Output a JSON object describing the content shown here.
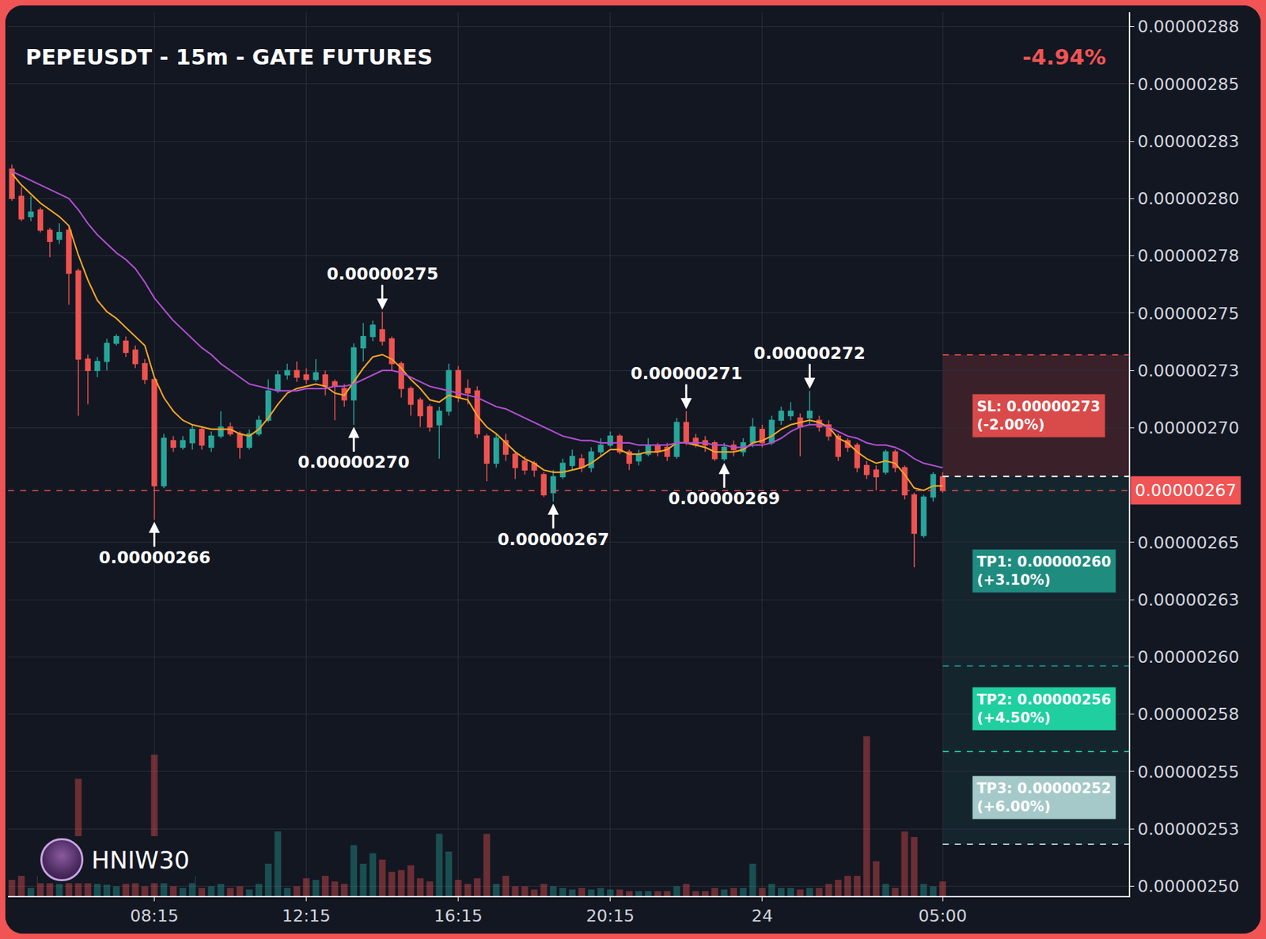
{
  "chart_data": {
    "type": "candlestick",
    "title": "PEPEUSDT - 15m - GATE FUTURES",
    "change": {
      "value": -4.94,
      "label": "-4.94%"
    },
    "watermark": "HNIW30",
    "categories": [
      null,
      null,
      null,
      null,
      null,
      null,
      null,
      null,
      null,
      null,
      null,
      null,
      null,
      null,
      null,
      "08:15",
      null,
      null,
      null,
      null,
      null,
      null,
      null,
      null,
      null,
      null,
      null,
      null,
      null,
      null,
      null,
      "12:15",
      null,
      null,
      null,
      null,
      null,
      null,
      null,
      null,
      null,
      null,
      null,
      null,
      null,
      null,
      null,
      "16:15",
      null,
      null,
      null,
      null,
      null,
      null,
      null,
      null,
      null,
      null,
      null,
      null,
      null,
      null,
      null,
      "20:15",
      null,
      null,
      null,
      null,
      null,
      null,
      null,
      null,
      null,
      null,
      null,
      null,
      null,
      null,
      null,
      "24",
      null,
      null,
      null,
      null,
      null,
      null,
      null,
      null,
      null,
      null,
      null,
      null,
      null,
      null,
      null,
      null,
      null,
      null,
      "05:00"
    ],
    "open": [
      2.817e-06,
      2.805e-06,
      2.796e-06,
      2.799e-06,
      2.79e-06,
      2.786e-06,
      2.79e-06,
      2.772e-06,
      2.733e-06,
      2.728e-06,
      2.732e-06,
      2.74e-06,
      2.741e-06,
      2.737e-06,
      2.731e-06,
      2.724e-06,
      2.677e-06,
      2.697e-06,
      2.694e-06,
      2.696e-06,
      2.702e-06,
      2.694e-06,
      2.699e-06,
      2.703e-06,
      2.7e-06,
      2.694e-06,
      2.7e-06,
      2.706e-06,
      2.719e-06,
      2.726e-06,
      2.728e-06,
      2.726e-06,
      2.724e-06,
      2.726e-06,
      2.723e-06,
      2.72e-06,
      2.715e-06,
      2.738e-06,
      2.743e-06,
      2.746e-06,
      2.742e-06,
      2.731e-06,
      2.72e-06,
      2.715e-06,
      2.712e-06,
      2.704e-06,
      2.71e-06,
      2.728e-06,
      2.72e-06,
      2.719e-06,
      2.699e-06,
      2.687e-06,
      2.697e-06,
      2.691e-06,
      2.688e-06,
      2.687e-06,
      2.682e-06,
      2.674e-06,
      2.681e-06,
      2.686e-06,
      2.689e-06,
      2.685e-06,
      2.692e-06,
      2.695e-06,
      2.699e-06,
      2.692e-06,
      2.688e-06,
      2.691e-06,
      2.695e-06,
      2.694e-06,
      2.69e-06,
      2.705e-06,
      2.698e-06,
      2.697e-06,
      2.696e-06,
      2.689e-06,
      2.695e-06,
      2.692e-06,
      2.696e-06,
      2.702e-06,
      2.696e-06,
      2.706e-06,
      2.708e-06,
      2.707e-06,
      2.707e-06,
      2.706e-06,
      2.704e-06,
      2.699e-06,
      2.697e-06,
      2.695e-06,
      2.686e-06,
      2.684e-06,
      2.683e-06,
      2.692e-06,
      2.685e-06,
      2.673e-06,
      2.655e-06,
      2.672e-06,
      2.681e-06
    ],
    "high": [
      2.819e-06,
      2.809e-06,
      2.805e-06,
      2.8e-06,
      2.791e-06,
      2.793e-06,
      2.792e-06,
      2.773e-06,
      2.735e-06,
      2.734e-06,
      2.742e-06,
      2.744e-06,
      2.743e-06,
      2.739e-06,
      2.733e-06,
      2.725e-06,
      2.7e-06,
      2.699e-06,
      2.699e-06,
      2.704e-06,
      2.703e-06,
      2.701e-06,
      2.71e-06,
      2.705e-06,
      2.701e-06,
      2.702e-06,
      2.708e-06,
      2.724e-06,
      2.728e-06,
      2.731e-06,
      2.732e-06,
      2.729e-06,
      2.733e-06,
      2.728e-06,
      2.724e-06,
      2.722e-06,
      2.74e-06,
      2.749e-06,
      2.75e-06,
      2.754e-06,
      2.743e-06,
      2.732e-06,
      2.721e-06,
      2.716e-06,
      2.713e-06,
      2.712e-06,
      2.731e-06,
      2.73e-06,
      2.724e-06,
      2.721e-06,
      2.7e-06,
      2.7e-06,
      2.7e-06,
      2.692e-06,
      2.69e-06,
      2.688e-06,
      2.683e-06,
      2.684e-06,
      2.689e-06,
      2.693e-06,
      2.691e-06,
      2.694e-06,
      2.698e-06,
      2.701e-06,
      2.7e-06,
      2.693e-06,
      2.693e-06,
      2.698e-06,
      2.696e-06,
      2.696e-06,
      2.707e-06,
      2.71e-06,
      2.7e-06,
      2.699e-06,
      2.697e-06,
      2.696e-06,
      2.697e-06,
      2.698e-06,
      2.707e-06,
      2.704e-06,
      2.708e-06,
      2.712e-06,
      2.714e-06,
      2.709e-06,
      2.719e-06,
      2.708e-06,
      2.706e-06,
      2.7e-06,
      2.698e-06,
      2.696e-06,
      2.688e-06,
      2.686e-06,
      2.693e-06,
      2.693e-06,
      2.686e-06,
      2.674e-06,
      2.673e-06,
      2.683e-06,
      2.683e-06
    ],
    "low": [
      2.803e-06,
      2.794e-06,
      2.794e-06,
      2.789e-06,
      2.778e-06,
      2.784e-06,
      2.757e-06,
      2.708e-06,
      2.713e-06,
      2.725e-06,
      2.728e-06,
      2.739e-06,
      2.734e-06,
      2.729e-06,
      2.722e-06,
      2.662e-06,
      2.676e-06,
      2.692e-06,
      2.693e-06,
      2.693e-06,
      2.693e-06,
      2.692e-06,
      2.698e-06,
      2.699e-06,
      2.689e-06,
      2.693e-06,
      2.699e-06,
      2.705e-06,
      2.718e-06,
      2.724e-06,
      2.723e-06,
      2.722e-06,
      2.723e-06,
      2.717e-06,
      2.706e-06,
      2.712e-06,
      2.704e-06,
      2.732e-06,
      2.741e-06,
      2.739e-06,
      2.728e-06,
      2.716e-06,
      2.708e-06,
      2.703e-06,
      2.701e-06,
      2.689e-06,
      2.708e-06,
      2.714e-06,
      2.713e-06,
      2.698e-06,
      2.679e-06,
      2.685e-06,
      2.688e-06,
      2.68e-06,
      2.682e-06,
      2.681e-06,
      2.672e-06,
      2.67e-06,
      2.68e-06,
      2.684e-06,
      2.683e-06,
      2.683e-06,
      2.69e-06,
      2.694e-06,
      2.691e-06,
      2.684e-06,
      2.686e-06,
      2.69e-06,
      2.69e-06,
      2.688e-06,
      2.689e-06,
      2.695e-06,
      2.694e-06,
      2.692e-06,
      2.688e-06,
      2.688e-06,
      2.69e-06,
      2.69e-06,
      2.694e-06,
      2.694e-06,
      2.695e-06,
      2.704e-06,
      2.706e-06,
      2.69e-06,
      2.704e-06,
      2.701e-06,
      2.697e-06,
      2.688e-06,
      2.692e-06,
      2.683e-06,
      2.68e-06,
      2.675e-06,
      2.682e-06,
      2.683e-06,
      2.671e-06,
      2.641e-06,
      2.654e-06,
      2.67e-06,
      2.674e-06
    ],
    "close": [
      2.804e-06,
      2.795e-06,
      2.798e-06,
      2.79e-06,
      2.785e-06,
      2.789e-06,
      2.771e-06,
      2.733e-06,
      2.728e-06,
      2.732e-06,
      2.74e-06,
      2.743e-06,
      2.736e-06,
      2.731e-06,
      2.724e-06,
      2.677e-06,
      2.698e-06,
      2.694e-06,
      2.697e-06,
      2.702e-06,
      2.695e-06,
      2.699e-06,
      2.703e-06,
      2.7e-06,
      2.694e-06,
      2.7e-06,
      2.706e-06,
      2.719e-06,
      2.726e-06,
      2.728e-06,
      2.725e-06,
      2.724e-06,
      2.727e-06,
      2.721e-06,
      2.721e-06,
      2.715e-06,
      2.738e-06,
      2.743e-06,
      2.748e-06,
      2.741e-06,
      2.731e-06,
      2.72e-06,
      2.713e-06,
      2.708e-06,
      2.703e-06,
      2.71e-06,
      2.728e-06,
      2.716e-06,
      2.718e-06,
      2.7e-06,
      2.687e-06,
      2.698e-06,
      2.691e-06,
      2.685e-06,
      2.684e-06,
      2.684e-06,
      2.673e-06,
      2.681e-06,
      2.687e-06,
      2.69e-06,
      2.685e-06,
      2.692e-06,
      2.695e-06,
      2.699e-06,
      2.692e-06,
      2.687e-06,
      2.691e-06,
      2.695e-06,
      2.692e-06,
      2.69e-06,
      2.705e-06,
      2.696e-06,
      2.695e-06,
      2.695e-06,
      2.689e-06,
      2.694e-06,
      2.693e-06,
      2.696e-06,
      2.703e-06,
      2.696e-06,
      2.706e-06,
      2.71e-06,
      2.71e-06,
      2.703e-06,
      2.71e-06,
      2.703e-06,
      2.699e-06,
      2.69e-06,
      2.694e-06,
      2.685e-06,
      2.682e-06,
      2.681e-06,
      2.692e-06,
      2.685e-06,
      2.673e-06,
      2.656e-06,
      2.672e-06,
      2.682e-06,
      2.675e-06
    ],
    "series": [
      {
        "type": "line",
        "color": "#f5a623",
        "values": [
          2.815e-06,
          2.81e-06,
          2.806e-06,
          2.802e-06,
          2.799e-06,
          2.796e-06,
          2.792e-06,
          2.779e-06,
          2.768e-06,
          2.759e-06,
          2.754e-06,
          2.751e-06,
          2.747e-06,
          2.743e-06,
          2.739e-06,
          2.725e-06,
          2.716e-06,
          2.71e-06,
          2.706e-06,
          2.704e-06,
          2.703e-06,
          2.702e-06,
          2.702e-06,
          2.702e-06,
          2.7e-06,
          2.699e-06,
          2.702e-06,
          2.707e-06,
          2.713e-06,
          2.718e-06,
          2.72e-06,
          2.721e-06,
          2.722e-06,
          2.721e-06,
          2.718e-06,
          2.717e-06,
          2.723e-06,
          2.729e-06,
          2.734e-06,
          2.735e-06,
          2.733e-06,
          2.729e-06,
          2.724e-06,
          2.72e-06,
          2.715e-06,
          2.714e-06,
          2.717e-06,
          2.716e-06,
          2.715e-06,
          2.708e-06,
          2.703e-06,
          2.7e-06,
          2.696e-06,
          2.692e-06,
          2.689e-06,
          2.687e-06,
          2.684e-06,
          2.683e-06,
          2.683e-06,
          2.684e-06,
          2.685e-06,
          2.687e-06,
          2.69e-06,
          2.693e-06,
          2.693e-06,
          2.691e-06,
          2.691e-06,
          2.692e-06,
          2.692e-06,
          2.693e-06,
          2.696e-06,
          2.696e-06,
          2.695e-06,
          2.694e-06,
          2.692e-06,
          2.692e-06,
          2.692e-06,
          2.693e-06,
          2.696e-06,
          2.697e-06,
          2.699e-06,
          2.702e-06,
          2.704e-06,
          2.705e-06,
          2.706e-06,
          2.705e-06,
          2.703e-06,
          2.698e-06,
          2.696e-06,
          2.692e-06,
          2.689e-06,
          2.687e-06,
          2.688e-06,
          2.687e-06,
          2.682e-06,
          2.676e-06,
          2.675e-06,
          2.677e-06,
          2.677e-06
        ]
      },
      {
        "type": "line",
        "color": "#b04fd0",
        "values": [
          2.816e-06,
          2.814e-06,
          2.812e-06,
          2.81e-06,
          2.808e-06,
          2.806e-06,
          2.804e-06,
          2.799e-06,
          2.793e-06,
          2.788e-06,
          2.784e-06,
          2.78e-06,
          2.777e-06,
          2.773e-06,
          2.767e-06,
          2.76e-06,
          2.755e-06,
          2.75e-06,
          2.746e-06,
          2.742e-06,
          2.738e-06,
          2.735e-06,
          2.731e-06,
          2.728e-06,
          2.725e-06,
          2.722e-06,
          2.721e-06,
          2.72e-06,
          2.719e-06,
          2.719e-06,
          2.719e-06,
          2.72e-06,
          2.72e-06,
          2.72e-06,
          2.721e-06,
          2.721e-06,
          2.722e-06,
          2.724e-06,
          2.726e-06,
          2.728e-06,
          2.728e-06,
          2.727e-06,
          2.725e-06,
          2.723e-06,
          2.721e-06,
          2.72e-06,
          2.719e-06,
          2.718e-06,
          2.717e-06,
          2.716e-06,
          2.714e-06,
          2.712e-06,
          2.711e-06,
          2.709e-06,
          2.707e-06,
          2.705e-06,
          2.703e-06,
          2.701e-06,
          2.699e-06,
          2.698e-06,
          2.697e-06,
          2.697e-06,
          2.696e-06,
          2.696e-06,
          2.696e-06,
          2.696e-06,
          2.695e-06,
          2.695e-06,
          2.695e-06,
          2.695e-06,
          2.696e-06,
          2.696e-06,
          2.696e-06,
          2.696e-06,
          2.695e-06,
          2.695e-06,
          2.694e-06,
          2.694e-06,
          2.695e-06,
          2.695e-06,
          2.696e-06,
          2.698e-06,
          2.701e-06,
          2.703e-06,
          2.704e-06,
          2.704e-06,
          2.703e-06,
          2.701e-06,
          2.699e-06,
          2.698e-06,
          2.696e-06,
          2.695e-06,
          2.695e-06,
          2.694e-06,
          2.692e-06,
          2.689e-06,
          2.687e-06,
          2.686e-06,
          2.685e-06
        ]
      }
    ],
    "volume": [
      20,
      25,
      10,
      25,
      20,
      15,
      35,
      145,
      40,
      15,
      14,
      12,
      15,
      18,
      12,
      175,
      22,
      12,
      10,
      25,
      10,
      12,
      15,
      10,
      12,
      8,
      15,
      40,
      80,
      10,
      12,
      22,
      20,
      25,
      18,
      15,
      63,
      40,
      53,
      45,
      30,
      32,
      38,
      22,
      18,
      77,
      55,
      20,
      15,
      22,
      77,
      15,
      25,
      12,
      12,
      8,
      15,
      12,
      10,
      8,
      10,
      8,
      10,
      8,
      8,
      6,
      6,
      6,
      6,
      6,
      12,
      15,
      6,
      6,
      10,
      8,
      10,
      10,
      40,
      10,
      15,
      10,
      10,
      8,
      10,
      10,
      15,
      20,
      25,
      25,
      198,
      43,
      15,
      10,
      80,
      73,
      15,
      12,
      18
    ],
    "y2lim": [
      0,
      1095
    ],
    "ylim": [
      2.4957e-06,
      2.8864e-06
    ],
    "yticks": [
      {
        "value": 2.5e-06,
        "label": "0.00000250"
      },
      {
        "value": 2.52533e-06,
        "label": "0.00000253"
      },
      {
        "value": 2.55067e-06,
        "label": "0.00000255"
      },
      {
        "value": 2.576e-06,
        "label": "0.00000258"
      },
      {
        "value": 2.60133e-06,
        "label": "0.00000260"
      },
      {
        "value": 2.62667e-06,
        "label": "0.00000263"
      },
      {
        "value": 2.652e-06,
        "label": "0.00000265"
      },
      {
        "value": 2.70267e-06,
        "label": "0.00000270"
      },
      {
        "value": 2.728e-06,
        "label": "0.00000273"
      },
      {
        "value": 2.75333e-06,
        "label": "0.00000275"
      },
      {
        "value": 2.77867e-06,
        "label": "0.00000278"
      },
      {
        "value": 2.804e-06,
        "label": "0.00000280"
      },
      {
        "value": 2.82933e-06,
        "label": "0.00000283"
      },
      {
        "value": 2.85467e-06,
        "label": "0.00000285"
      },
      {
        "value": 2.88e-06,
        "label": "0.00000288"
      }
    ],
    "grid": true,
    "annotations": [
      {
        "text": "0.00000275",
        "at": 39,
        "anchor": "high"
      },
      {
        "text": "0.00000270",
        "at": 36,
        "anchor": "low"
      },
      {
        "text": "0.00000266",
        "at": 15,
        "anchor": "low"
      },
      {
        "text": "0.00000267",
        "at": 57,
        "anchor": "low"
      },
      {
        "text": "0.00000271",
        "at": 71,
        "anchor": "high"
      },
      {
        "text": "0.00000269",
        "at": 75,
        "anchor": "low"
      },
      {
        "text": "0.00000272",
        "at": 84,
        "anchor": "high"
      }
    ],
    "last_price": {
      "value": 2.6749e-06,
      "label": "0.00000267"
    },
    "trade": {
      "entry": 2.6812e-06,
      "levels": [
        {
          "label": "SL: 0.00000273",
          "change": "(-2.00%)",
          "value": 2.7349e-06,
          "color": "#d94a4a"
        },
        {
          "label": "TP1: 0.00000260",
          "change": "(+3.10%)",
          "value": 2.5974e-06,
          "color": "#1f8c80"
        },
        {
          "label": "TP2: 0.00000256",
          "change": "(+4.50%)",
          "value": 2.5596e-06,
          "color": "#20cfa0"
        },
        {
          "label": "TP3: 0.00000252",
          "change": "(+6.00%)",
          "value": 2.5186e-06,
          "color": "#a4c9c8"
        }
      ]
    }
  }
}
